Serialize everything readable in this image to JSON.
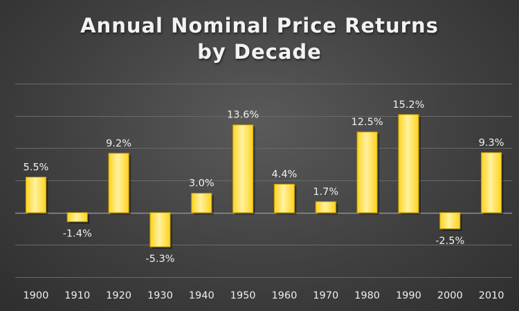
{
  "chart_data": {
    "type": "bar",
    "title": "Annual Nominal Price Returns",
    "subtitle": "by Decade",
    "xlabel": "",
    "ylabel": "",
    "categories": [
      "1900",
      "1910",
      "1920",
      "1930",
      "1940",
      "1950",
      "1960",
      "1970",
      "1980",
      "1990",
      "2000",
      "2010"
    ],
    "values": [
      5.5,
      -1.4,
      9.2,
      -5.3,
      3.0,
      13.6,
      4.4,
      1.7,
      12.5,
      15.2,
      -2.5,
      9.3
    ],
    "data_labels": [
      "5.5%",
      "-1.4%",
      "9.2%",
      "-5.3%",
      "3.0%",
      "13.6%",
      "4.4%",
      "1.7%",
      "12.5%",
      "15.2%",
      "-2.5%",
      "9.3%"
    ],
    "ylim": [
      -10,
      20
    ],
    "grid": true,
    "legend": "none",
    "colors": {
      "bar": "#ffd21f",
      "bar_highlight": "#fff2a0",
      "bar_edge": "#c9a200",
      "background": "#404040",
      "text": "#f0f0f0",
      "gridline": "#6a6a6a"
    }
  }
}
